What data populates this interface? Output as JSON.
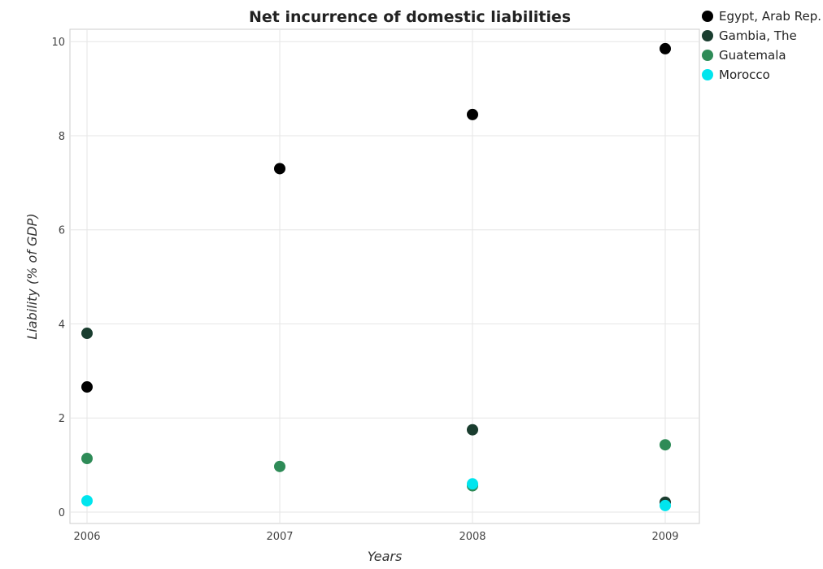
{
  "chart_data": {
    "type": "scatter",
    "title": "Net incurrence of domestic liabilities",
    "xlabel": "Years",
    "ylabel": "Liability (% of GDP)",
    "categories": [
      "2006",
      "2007",
      "2008",
      "2009"
    ],
    "ylim": [
      0,
      10.5
    ],
    "yticks": [
      "0",
      "2",
      "4",
      "6",
      "8",
      "10"
    ],
    "grid": true,
    "legend_position": "top-right",
    "series": [
      {
        "name": "Egypt, Arab Rep.",
        "color": "#000000",
        "values": [
          2.66,
          7.3,
          8.45,
          9.85
        ]
      },
      {
        "name": "Gambia, The",
        "color": "#1a3d2f",
        "values": [
          3.8,
          null,
          1.75,
          0.21
        ]
      },
      {
        "name": "Guatemala",
        "color": "#2e8b57",
        "values": [
          1.14,
          0.97,
          0.56,
          1.43
        ]
      },
      {
        "name": "Morocco",
        "color": "#00e5ee",
        "values": [
          0.24,
          null,
          0.6,
          0.14
        ]
      }
    ]
  }
}
